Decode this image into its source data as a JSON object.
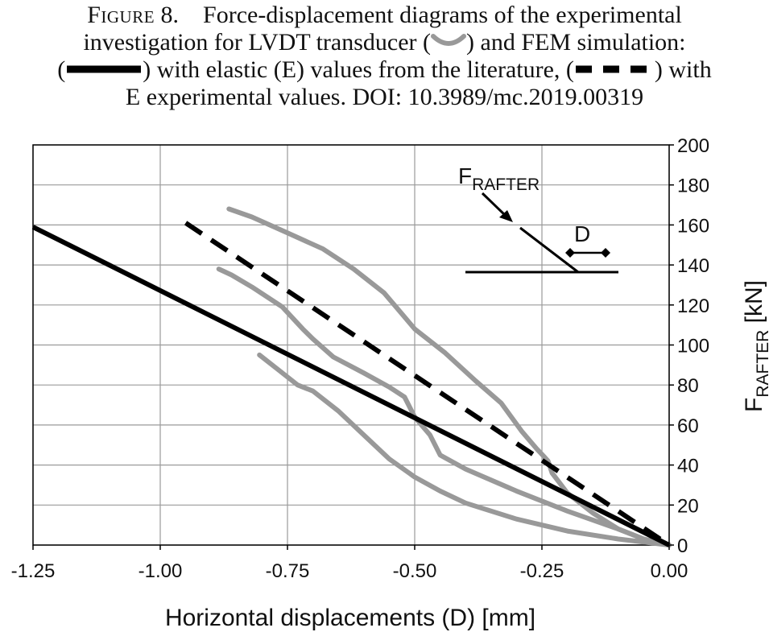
{
  "caption": {
    "line1_prefix": "Figure",
    "line1_rest": " 8.    Force-displacement diagrams of the experimental",
    "line2": "investigation for LVDT transducer (",
    "line2_end": ") and FEM simulation:",
    "line3_a": "(",
    "line3_b": ") with elastic (E) values from the literature, (",
    "line3_c": ") with",
    "line4": "E experimental values. DOI: 10.3989/mc.2019.00319"
  },
  "chart_data": {
    "type": "line",
    "xlabel": "Horizontal displacements (D) [mm]",
    "ylabel_main": "F",
    "ylabel_sub": "RAFTER",
    "ylabel_unit": " [kN]",
    "xlim": [
      -1.25,
      0.0
    ],
    "ylim": [
      0,
      200
    ],
    "x_ticks": [
      -1.25,
      -1.0,
      -0.75,
      -0.5,
      -0.25,
      0.0
    ],
    "x_tick_labels": [
      "-1.25",
      "-1.00",
      "-0.75",
      "-0.50",
      "-0.25",
      "0.00"
    ],
    "y_ticks": [
      0,
      20,
      40,
      60,
      80,
      100,
      120,
      140,
      160,
      180,
      200
    ],
    "y_tick_labels": [
      "0",
      "20",
      "40",
      "60",
      "80",
      "100",
      "120",
      "140",
      "160",
      "180",
      "200"
    ],
    "grid": true,
    "y_axis_side": "right",
    "series": [
      {
        "style": "solid-black",
        "color": "#000000",
        "x": [
          -1.25,
          0.0
        ],
        "y": [
          159,
          0
        ]
      },
      {
        "style": "dashed-black",
        "color": "#000000",
        "x": [
          -0.95,
          0.0
        ],
        "y": [
          161,
          0
        ]
      },
      {
        "style": "gray-curve",
        "color": "#999999",
        "x": [
          -0.865,
          -0.82,
          -0.75,
          -0.68,
          -0.62,
          -0.56,
          -0.5,
          -0.44,
          -0.38,
          -0.33,
          -0.29,
          -0.26,
          -0.245,
          -0.238,
          -0.23,
          -0.2,
          -0.15,
          -0.1,
          -0.05,
          0.0
        ],
        "y": [
          168,
          164,
          156,
          148,
          138,
          126,
          108,
          96,
          82,
          71,
          57,
          48,
          44,
          42,
          36,
          26,
          16,
          8,
          3,
          0
        ]
      },
      {
        "style": "gray-curve",
        "color": "#999999",
        "x": [
          -0.885,
          -0.86,
          -0.82,
          -0.76,
          -0.72,
          -0.7,
          -0.66,
          -0.6,
          -0.55,
          -0.52,
          -0.5,
          -0.47,
          -0.45,
          -0.4,
          -0.3,
          -0.2,
          -0.1,
          -0.05,
          0.0
        ],
        "y": [
          138,
          135,
          129,
          119,
          108,
          103,
          94,
          86,
          79,
          74,
          64,
          55,
          45,
          38,
          27,
          17,
          8,
          3,
          0
        ]
      },
      {
        "style": "gray-curve",
        "color": "#999999",
        "x": [
          -0.805,
          -0.77,
          -0.73,
          -0.7,
          -0.65,
          -0.6,
          -0.55,
          -0.5,
          -0.45,
          -0.4,
          -0.3,
          -0.2,
          -0.1,
          0.0
        ],
        "y": [
          95,
          88,
          80,
          77,
          67,
          55,
          43,
          34,
          27,
          21,
          13,
          7,
          3,
          0
        ]
      }
    ],
    "inset": {
      "force_label_main": "F",
      "force_label_sub": "RAFTER",
      "displacement_label": "D"
    }
  }
}
